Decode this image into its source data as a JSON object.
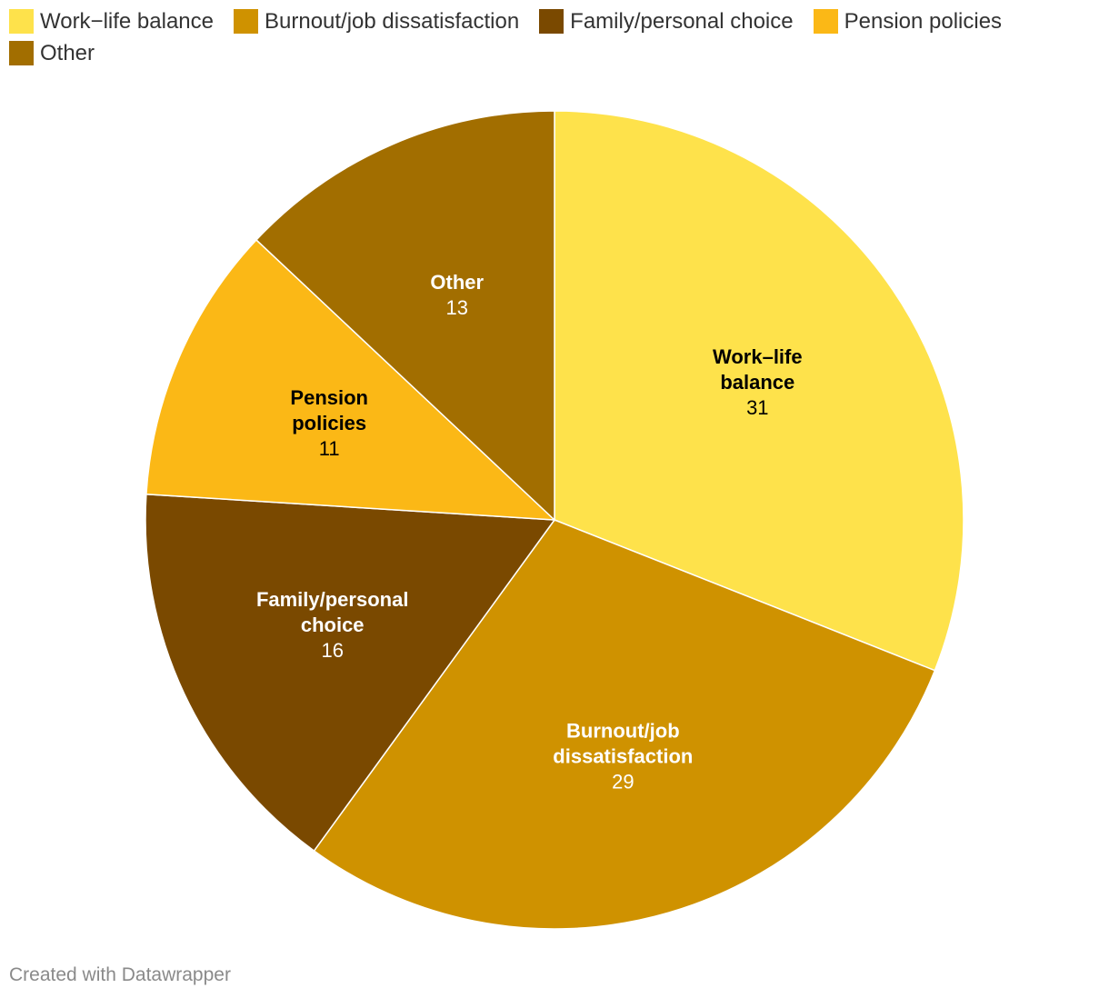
{
  "chart_data": {
    "type": "pie",
    "title": "",
    "slices": [
      {
        "label": "Work–life balance",
        "value": 31,
        "color": "#fee24b",
        "label_lines": [
          "Work–life",
          "balance"
        ],
        "label_color": "#000000"
      },
      {
        "label": "Burnout/job dissatisfaction",
        "value": 29,
        "color": "#cf9200",
        "label_lines": [
          "Burnout/job",
          "dissatisfaction"
        ],
        "label_color": "#ffffff"
      },
      {
        "label": "Family/personal choice",
        "value": 16,
        "color": "#7a4900",
        "label_lines": [
          "Family/personal",
          "choice"
        ],
        "label_color": "#ffffff"
      },
      {
        "label": "Pension policies",
        "value": 11,
        "color": "#fbb816",
        "label_lines": [
          "Pension",
          "policies"
        ],
        "label_color": "#000000"
      },
      {
        "label": "Other",
        "value": 13,
        "color": "#a26e00",
        "label_lines": [
          "Other"
        ],
        "label_color": "#ffffff"
      }
    ],
    "legend_position": "top-left",
    "start_angle": "12 o'clock",
    "direction": "clockwise"
  },
  "legend": {
    "items": [
      {
        "label": "Work−life balance",
        "color": "#fee24b"
      },
      {
        "label": "Burnout/job dissatisfaction",
        "color": "#cf9200"
      },
      {
        "label": "Family/personal choice",
        "color": "#7a4900"
      },
      {
        "label": "Pension policies",
        "color": "#fbb816"
      },
      {
        "label": "Other",
        "color": "#a26e00"
      }
    ]
  },
  "footer": {
    "credit": "Created with Datawrapper"
  }
}
